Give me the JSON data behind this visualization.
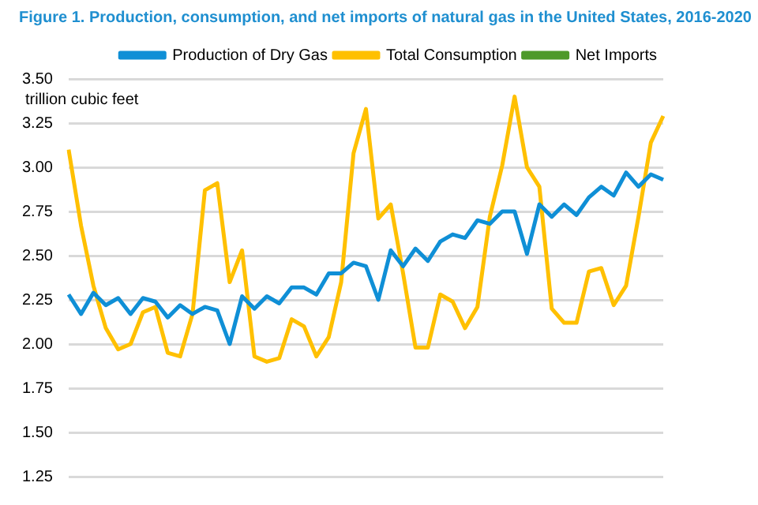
{
  "chart_data": {
    "type": "line",
    "title": "Figure 1.  Production, consumption, and net imports of natural gas in the United States, 2016-2020",
    "ylabel": "trillion cubic feet",
    "categories": [
      null,
      null,
      null,
      null,
      null,
      null,
      null,
      null,
      null,
      null,
      null,
      null,
      null,
      null,
      null,
      null,
      null,
      null,
      null,
      null,
      null,
      null,
      null,
      null,
      null,
      null,
      null,
      null,
      null,
      null,
      null,
      null,
      null,
      null,
      null,
      null,
      null,
      null,
      null,
      null,
      null,
      null,
      null,
      null,
      null,
      null,
      null,
      null,
      null
    ],
    "series": [
      {
        "name": "Production of Dry Gas",
        "color": "#0f8fd6",
        "values": [
          2.28,
          2.17,
          2.29,
          2.22,
          2.26,
          2.17,
          2.26,
          2.24,
          2.15,
          2.22,
          2.17,
          2.21,
          2.19,
          2.0,
          2.27,
          2.2,
          2.27,
          2.23,
          2.32,
          2.32,
          2.28,
          2.4,
          2.4,
          2.46,
          2.44,
          2.25,
          2.53,
          2.44,
          2.54,
          2.47,
          2.58,
          2.62,
          2.6,
          2.7,
          2.68,
          2.75,
          2.75,
          2.51,
          2.79,
          2.72,
          2.79,
          2.73,
          2.83,
          2.89,
          2.84,
          2.97,
          2.89,
          2.96,
          2.93
        ]
      },
      {
        "name": "Total Consumption",
        "color": "#ffc000",
        "values": [
          3.1,
          2.67,
          2.33,
          2.09,
          1.97,
          2.0,
          2.18,
          2.21,
          1.95,
          1.93,
          2.17,
          2.87,
          2.91,
          2.35,
          2.53,
          1.93,
          1.9,
          1.92,
          2.14,
          2.1,
          1.93,
          2.04,
          2.35,
          3.08,
          3.33,
          2.71,
          2.79,
          2.4,
          1.98,
          1.98,
          2.28,
          2.24,
          2.09,
          2.21,
          2.72,
          3.01,
          3.4,
          3.0,
          2.89,
          2.2,
          2.12,
          2.12,
          2.41,
          2.43,
          2.22,
          2.33,
          2.72,
          3.14,
          3.29
        ]
      },
      {
        "name": "Net Imports",
        "color": "#4e9a2a",
        "values": [
          null,
          null,
          null,
          null,
          null,
          null,
          null,
          null,
          null,
          null,
          null,
          null,
          null,
          null,
          null,
          null,
          null,
          null,
          null,
          null,
          null,
          null,
          null,
          null,
          null,
          null,
          null,
          null,
          null,
          null,
          null,
          null,
          null,
          null,
          null,
          null,
          null,
          null,
          null,
          null,
          null,
          null,
          null,
          null,
          null,
          null,
          null,
          null,
          null
        ]
      }
    ],
    "ylim": [
      1.25,
      3.5
    ],
    "yticks": [
      {
        "value": 1.25,
        "label": "1.25"
      },
      {
        "value": 1.5,
        "label": "1.50"
      },
      {
        "value": 1.75,
        "label": "1.75"
      },
      {
        "value": 2,
        "label": "2.00"
      },
      {
        "value": 2.25,
        "label": "2.25"
      },
      {
        "value": 2.5,
        "label": "2.50"
      },
      {
        "value": 2.75,
        "label": "2.75"
      },
      {
        "value": 3,
        "label": "3.00"
      },
      {
        "value": 3.25,
        "label": "3.25"
      },
      {
        "value": 3.5,
        "label": "3.50"
      }
    ],
    "grid": "y",
    "legend": "top right",
    "tick_labels": "y",
    "marker": "none",
    "line_style": "solid"
  }
}
